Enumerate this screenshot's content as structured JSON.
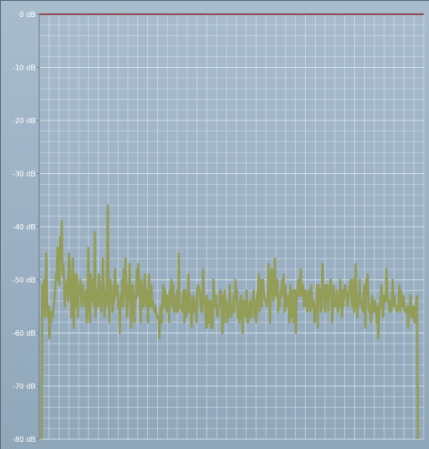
{
  "window": {
    "background": "#9db2c4",
    "grid_color": "#dde6ee",
    "axis_color": "#6f8191",
    "zero_line_color": "#8b2a2a",
    "trace_color": "#949d57"
  },
  "chart_data": {
    "type": "line",
    "title": "",
    "xlabel": "",
    "ylabel": "",
    "grid": true,
    "ylim": [
      -80,
      0
    ],
    "y_ticks": [
      {
        "value": 0,
        "label": "0 dB"
      },
      {
        "value": -10,
        "label": "-10 dB"
      },
      {
        "value": -20,
        "label": "-20 dB"
      },
      {
        "value": -30,
        "label": "-30 dB"
      },
      {
        "value": -40,
        "label": "-40 dB"
      },
      {
        "value": -50,
        "label": "-50 dB"
      },
      {
        "value": -60,
        "label": "-60 dB"
      },
      {
        "value": -70,
        "label": "-70 dB"
      },
      {
        "value": -80,
        "label": "-80 dB"
      }
    ],
    "series": [
      {
        "values": [
          -80,
          -51,
          -53,
          -50,
          -57,
          -54,
          -45,
          -55,
          -57,
          -55,
          -61,
          -56,
          -58,
          -56,
          -57,
          -55,
          -54,
          -52,
          -49,
          -50,
          -44,
          -48,
          -51,
          -42,
          -46,
          -39,
          -49,
          -47,
          -50,
          -55,
          -51,
          -51,
          -50,
          -54,
          -45,
          -48,
          -51,
          -57,
          -53,
          -46,
          -59,
          -49,
          -55,
          -53,
          -49,
          -57,
          -52,
          -52,
          -50,
          -53,
          -55,
          -51,
          -54,
          -53,
          -55,
          -52,
          -58,
          -55,
          -44,
          -52,
          -58,
          -49,
          -52,
          -54,
          -50,
          -55,
          -41,
          -57,
          -52,
          -53,
          -55,
          -49,
          -51,
          -54,
          -56,
          -52,
          -46,
          -52,
          -57,
          -52,
          -55,
          -53,
          -36,
          -52,
          -58,
          -50,
          -53,
          -51,
          -56,
          -54,
          -54,
          -48,
          -53,
          -52,
          -51,
          -55,
          -55,
          -60,
          -53,
          -55,
          -50,
          -55,
          -48,
          -53,
          -46,
          -54,
          -57,
          -51,
          -54,
          -47,
          -52,
          -59,
          -55,
          -51,
          -55,
          -58,
          -53,
          -54,
          -48,
          -53,
          -47,
          -51,
          -51,
          -58,
          -50,
          -55,
          -55,
          -53,
          -49,
          -54,
          -55,
          -52,
          -58,
          -49,
          -55,
          -55,
          -51,
          -55,
          -54,
          -55,
          -56,
          -55,
          -56,
          -57,
          -57,
          -57,
          -61,
          -56,
          -55,
          -58,
          -53,
          -51,
          -55,
          -52,
          -54,
          -56,
          -53,
          -53,
          -58,
          -52,
          -54,
          -50,
          -55,
          -51,
          -56,
          -53,
          -55,
          -56,
          -52,
          -56,
          -45,
          -55,
          -55,
          -55,
          -56,
          -53,
          -52,
          -58,
          -52,
          -57,
          -56,
          -54,
          -49,
          -56,
          -53,
          -56,
          -59,
          -54,
          -53,
          -56,
          -56,
          -54,
          -58,
          -52,
          -51,
          -52,
          -52,
          -55,
          -56,
          -56,
          -48,
          -53,
          -54,
          -56,
          -59,
          -53,
          -56,
          -58,
          -54,
          -55,
          -59,
          -54,
          -59,
          -50,
          -54,
          -55,
          -53,
          -56,
          -57,
          -56,
          -55,
          -52,
          -52,
          -54,
          -60,
          -53,
          -58,
          -52,
          -56,
          -54,
          -58,
          -56,
          -57,
          -51,
          -55,
          -57,
          -56,
          -55,
          -53,
          -56,
          -50,
          -53,
          -52,
          -57,
          -56,
          -58,
          -54,
          -53,
          -56,
          -60,
          -54,
          -54,
          -55,
          -57,
          -52,
          -58,
          -58,
          -57,
          -54,
          -56,
          -57,
          -54,
          -53,
          -52,
          -57,
          -54,
          -58,
          -53,
          -52,
          -49,
          -56,
          -50,
          -54,
          -55,
          -50,
          -52,
          -53,
          -54,
          -54,
          -55,
          -54,
          -47,
          -50,
          -58,
          -51,
          -48,
          -49,
          -54,
          -52,
          -46,
          -53,
          -53,
          -50,
          -56,
          -54,
          -55,
          -52,
          -52,
          -50,
          -53,
          -49,
          -56,
          -51,
          -54,
          -55,
          -54,
          -53,
          -58,
          -51,
          -57,
          -55,
          -52,
          -58,
          -52,
          -52,
          -60,
          -53,
          -52,
          -50,
          -53,
          -51,
          -48,
          -53,
          -53,
          -51,
          -55,
          -55,
          -52,
          -53,
          -56,
          -55,
          -52,
          -54,
          -56,
          -51,
          -55,
          -55,
          -54,
          -58,
          -55,
          -56,
          -51,
          -59,
          -51,
          -54,
          -52,
          -56,
          -55,
          -47,
          -53,
          -51,
          -56,
          -51,
          -54,
          -51,
          -56,
          -52,
          -52,
          -50,
          -53,
          -58,
          -55,
          -51,
          -55,
          -54,
          -55,
          -52,
          -56,
          -53,
          -55,
          -50,
          -54,
          -57,
          -52,
          -55,
          -52,
          -51,
          -52,
          -53,
          -55,
          -53,
          -52,
          -51,
          -50,
          -54,
          -55,
          -50,
          -56,
          -54,
          -47,
          -53,
          -57,
          -53,
          -55,
          -50,
          -54,
          -54,
          -55,
          -56,
          -53,
          -51,
          -59,
          -50,
          -52,
          -49,
          -55,
          -56,
          -55,
          -58,
          -54,
          -53,
          -56,
          -56,
          -54,
          -55,
          -58,
          -55,
          -61,
          -56,
          -55,
          -53,
          -51,
          -55,
          -57,
          -53,
          -54,
          -54,
          -48,
          -52,
          -54,
          -54,
          -56,
          -54,
          -56,
          -53,
          -50,
          -55,
          -53,
          -55,
          -55,
          -56,
          -55,
          -55,
          -51,
          -56,
          -52,
          -54,
          -55,
          -53,
          -55,
          -56,
          -56,
          -56,
          -55,
          -59,
          -55,
          -56,
          -53,
          -57,
          -57,
          -55,
          -56,
          -58,
          -56,
          -54,
          -53,
          -80
        ]
      }
    ]
  }
}
